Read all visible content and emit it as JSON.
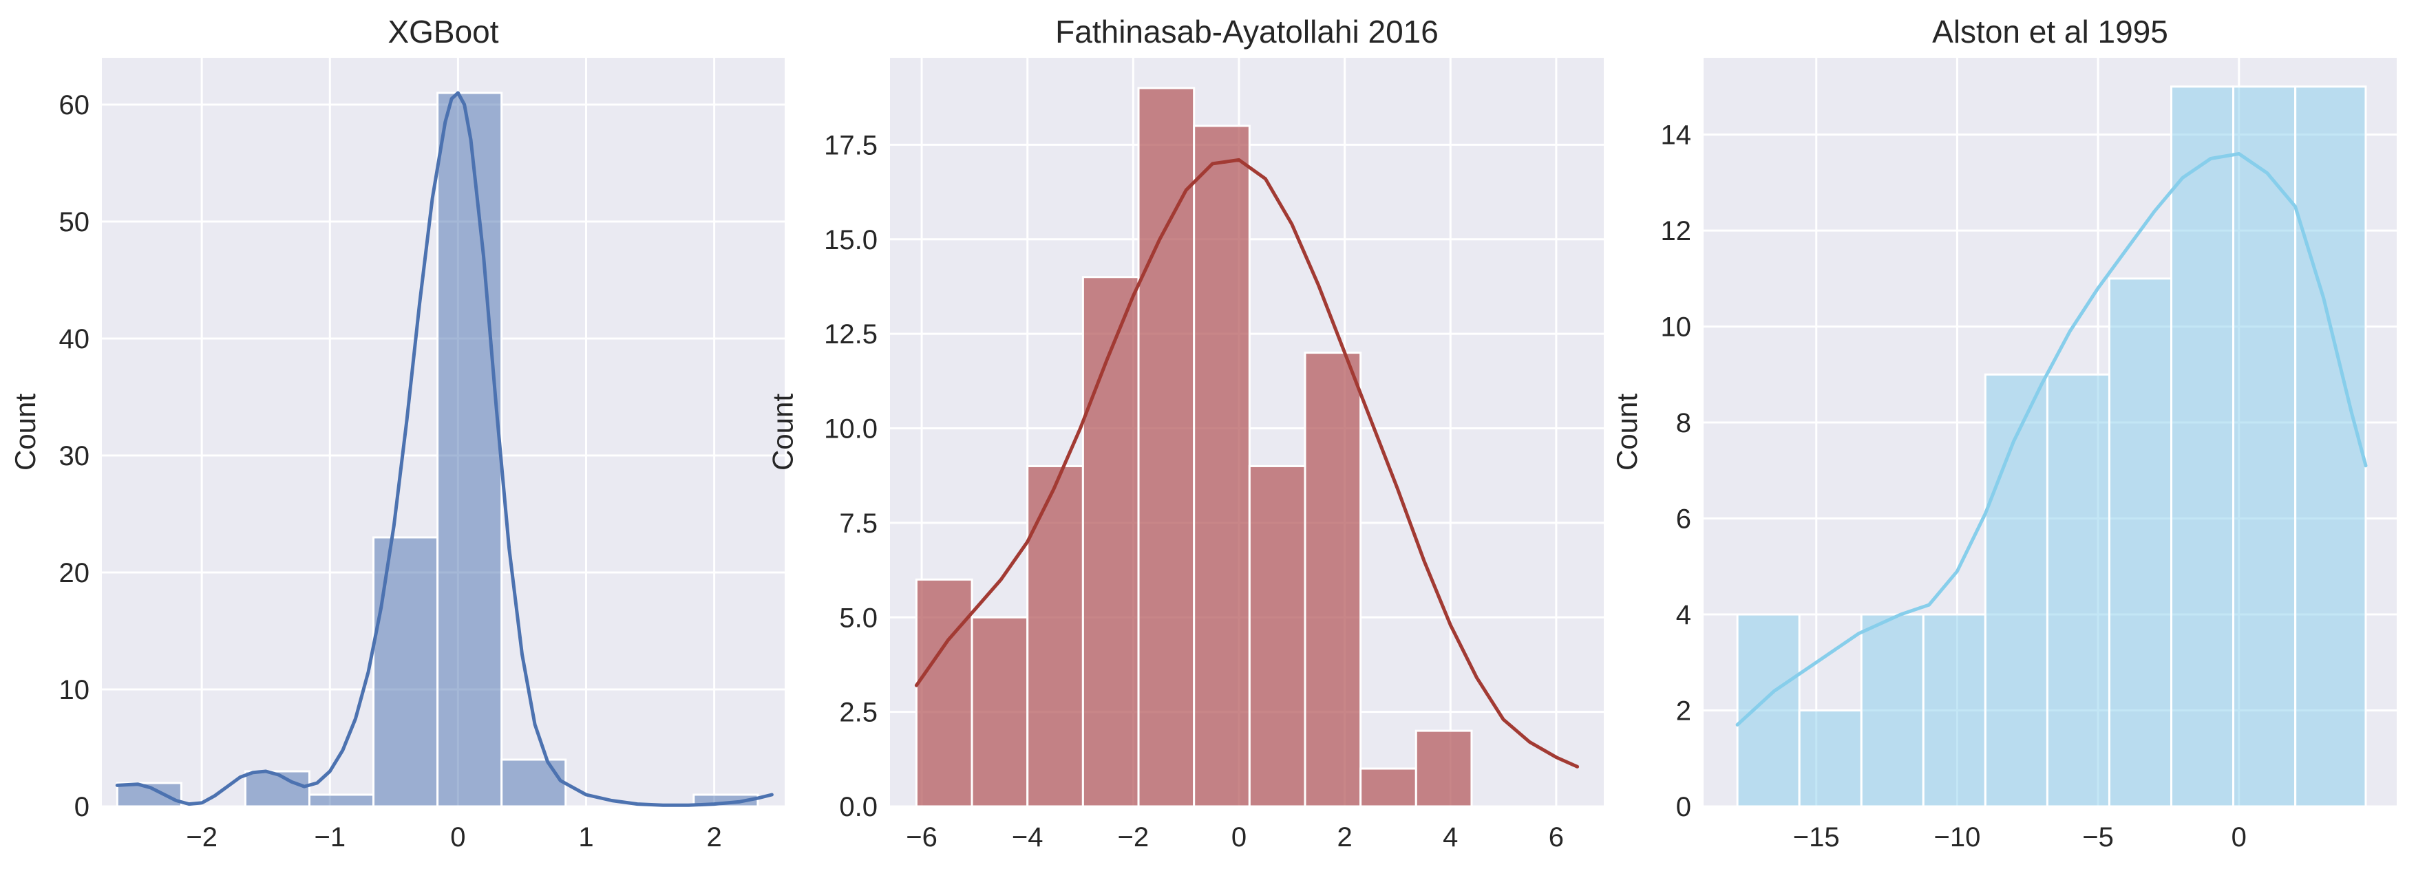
{
  "chart_data": [
    {
      "type": "bar",
      "subtype": "histogram-with-kde",
      "title": "XGBoot",
      "xlabel": "",
      "ylabel": "Count",
      "xlim": [
        -2.78,
        2.55
      ],
      "ylim": [
        0,
        64
      ],
      "xticks": [
        -2,
        -1,
        0,
        1,
        2
      ],
      "yticks": [
        0,
        10,
        20,
        30,
        40,
        50,
        60
      ],
      "bar_color": "#4c72b0",
      "bar_opacity": 0.5,
      "line_color": "#4c72b0",
      "grid": true,
      "bins": [
        {
          "x0": -2.66,
          "x1": -2.16,
          "count": 2
        },
        {
          "x0": -2.16,
          "x1": -1.66,
          "count": 0
        },
        {
          "x0": -1.66,
          "x1": -1.16,
          "count": 3
        },
        {
          "x0": -1.16,
          "x1": -0.66,
          "count": 1
        },
        {
          "x0": -0.66,
          "x1": -0.16,
          "count": 23
        },
        {
          "x0": -0.16,
          "x1": 0.34,
          "count": 61
        },
        {
          "x0": 0.34,
          "x1": 0.84,
          "count": 4
        },
        {
          "x0": 0.84,
          "x1": 1.34,
          "count": 0
        },
        {
          "x0": 1.34,
          "x1": 1.84,
          "count": 0
        },
        {
          "x0": 1.84,
          "x1": 2.34,
          "count": 1
        }
      ],
      "kde": {
        "x": [
          -2.66,
          -2.5,
          -2.4,
          -2.2,
          -2.1,
          -2.0,
          -1.9,
          -1.8,
          -1.7,
          -1.6,
          -1.5,
          -1.4,
          -1.3,
          -1.2,
          -1.1,
          -1.0,
          -0.9,
          -0.8,
          -0.7,
          -0.6,
          -0.5,
          -0.4,
          -0.3,
          -0.2,
          -0.1,
          -0.05,
          0.0,
          0.05,
          0.1,
          0.2,
          0.3,
          0.4,
          0.5,
          0.6,
          0.7,
          0.8,
          1.0,
          1.2,
          1.4,
          1.6,
          1.8,
          2.0,
          2.2,
          2.34,
          2.45
        ],
        "y": [
          1.8,
          1.9,
          1.6,
          0.5,
          0.2,
          0.3,
          0.9,
          1.7,
          2.5,
          2.9,
          3.0,
          2.7,
          2.1,
          1.7,
          2.0,
          3.0,
          4.8,
          7.5,
          11.5,
          17.0,
          24.0,
          33.0,
          43.0,
          52.0,
          58.5,
          60.5,
          61.0,
          60.0,
          57.0,
          47.0,
          34.0,
          22.0,
          13.0,
          7.0,
          3.8,
          2.2,
          1.0,
          0.5,
          0.2,
          0.1,
          0.1,
          0.2,
          0.4,
          0.7,
          1.0
        ]
      }
    },
    {
      "type": "bar",
      "subtype": "histogram-with-kde",
      "title": "Fathinasab-Ayatollahi 2016",
      "xlabel": "",
      "ylabel": "Count",
      "xlim": [
        -6.6,
        6.9
      ],
      "ylim": [
        0,
        19.8
      ],
      "xticks": [
        -6,
        -4,
        -2,
        0,
        2,
        4,
        6
      ],
      "yticks": [
        0.0,
        2.5,
        5.0,
        7.5,
        10.0,
        12.5,
        15.0,
        17.5
      ],
      "ytick_labels": [
        "0.0",
        "2.5",
        "5.0",
        "7.5",
        "10.0",
        "12.5",
        "15.0",
        "17.5"
      ],
      "bar_color": "#b55d60",
      "bar_opacity": 0.75,
      "line_color": "#a23a33",
      "grid": true,
      "bins": [
        {
          "x0": -6.1,
          "x1": -5.05,
          "count": 6
        },
        {
          "x0": -5.05,
          "x1": -4.0,
          "count": 5
        },
        {
          "x0": -4.0,
          "x1": -2.95,
          "count": 9
        },
        {
          "x0": -2.95,
          "x1": -1.9,
          "count": 14
        },
        {
          "x0": -1.9,
          "x1": -0.85,
          "count": 19
        },
        {
          "x0": -0.85,
          "x1": 0.2,
          "count": 18
        },
        {
          "x0": 0.2,
          "x1": 1.25,
          "count": 9
        },
        {
          "x0": 1.25,
          "x1": 2.3,
          "count": 12
        },
        {
          "x0": 2.3,
          "x1": 3.35,
          "count": 1
        },
        {
          "x0": 3.35,
          "x1": 4.4,
          "count": 2
        }
      ],
      "kde": {
        "x": [
          -6.1,
          -5.5,
          -5.0,
          -4.5,
          -4.0,
          -3.5,
          -3.0,
          -2.5,
          -2.0,
          -1.5,
          -1.0,
          -0.5,
          0.0,
          0.5,
          1.0,
          1.5,
          2.0,
          2.5,
          3.0,
          3.5,
          4.0,
          4.5,
          5.0,
          5.5,
          6.0,
          6.4
        ],
        "y": [
          3.2,
          4.4,
          5.2,
          6.0,
          7.0,
          8.4,
          10.0,
          11.8,
          13.5,
          15.0,
          16.3,
          17.0,
          17.1,
          16.6,
          15.4,
          13.8,
          12.0,
          10.2,
          8.4,
          6.5,
          4.8,
          3.4,
          2.3,
          1.7,
          1.3,
          1.05
        ]
      }
    },
    {
      "type": "bar",
      "subtype": "histogram-with-kde",
      "title": "Alston et al 1995",
      "xlabel": "",
      "ylabel": "Count",
      "xlim": [
        -19.0,
        5.6
      ],
      "ylim": [
        0,
        15.6
      ],
      "xticks": [
        -15,
        -10,
        -5,
        0
      ],
      "yticks": [
        0,
        2,
        4,
        6,
        8,
        10,
        12,
        14
      ],
      "bar_color": "#87ceeb",
      "bar_opacity": 0.5,
      "line_color": "#87ceeb",
      "grid": true,
      "bins": [
        {
          "x0": -17.8,
          "x1": -15.6,
          "count": 4
        },
        {
          "x0": -15.6,
          "x1": -13.4,
          "count": 2
        },
        {
          "x0": -13.4,
          "x1": -11.2,
          "count": 4
        },
        {
          "x0": -11.2,
          "x1": -9.0,
          "count": 4
        },
        {
          "x0": -9.0,
          "x1": -6.8,
          "count": 9
        },
        {
          "x0": -6.8,
          "x1": -4.6,
          "count": 9
        },
        {
          "x0": -4.6,
          "x1": -2.4,
          "count": 11
        },
        {
          "x0": -2.4,
          "x1": -0.2,
          "count": 15
        },
        {
          "x0": -0.2,
          "x1": 2.0,
          "count": 15
        },
        {
          "x0": 2.0,
          "x1": 4.5,
          "count": 15
        }
      ],
      "kde": {
        "x": [
          -17.8,
          -16.5,
          -15.0,
          -13.5,
          -12.0,
          -11.0,
          -10.0,
          -9.0,
          -8.0,
          -7.0,
          -6.0,
          -5.0,
          -4.0,
          -3.0,
          -2.0,
          -1.0,
          0.0,
          1.0,
          2.0,
          3.0,
          3.5,
          4.0,
          4.5
        ],
        "y": [
          1.7,
          2.4,
          3.0,
          3.6,
          4.0,
          4.2,
          4.9,
          6.1,
          7.6,
          8.8,
          9.9,
          10.8,
          11.6,
          12.4,
          13.1,
          13.5,
          13.6,
          13.2,
          12.5,
          10.6,
          9.4,
          8.2,
          7.1
        ]
      }
    }
  ]
}
